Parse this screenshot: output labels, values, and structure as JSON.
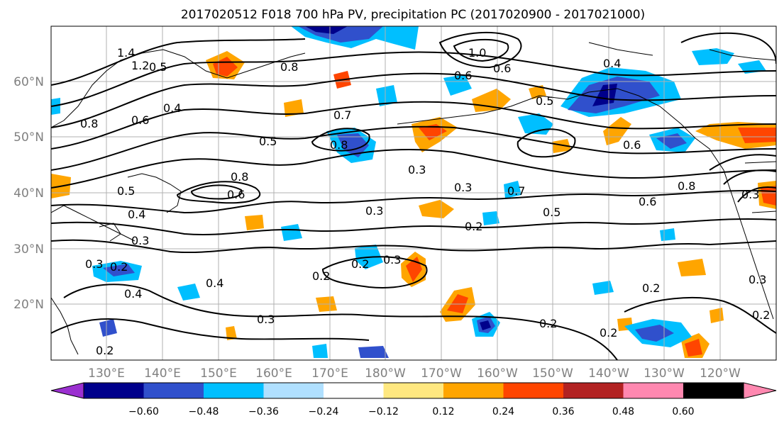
{
  "title": "2017020512 F018 700 hPa PV, precipitation PC (2017020900 - 2017021000)",
  "lat_labels": [
    "60°N",
    "50°N",
    "40°N",
    "30°N",
    "20°N"
  ],
  "lon_labels": [
    "130°E",
    "140°E",
    "150°E",
    "160°E",
    "170°E",
    "180°W",
    "170°W",
    "160°W",
    "150°W",
    "140°W",
    "130°W",
    "120°W"
  ],
  "colorbar": {
    "ticks": [
      "−0.60",
      "−0.48",
      "−0.36",
      "−0.24",
      "−0.12",
      "0.12",
      "0.24",
      "0.36",
      "0.48",
      "0.60"
    ],
    "colors": [
      "#9b30d0",
      "#00008b",
      "#3050cc",
      "#00bfff",
      "#b0e0ff",
      "#ffffff",
      "#ffe880",
      "#ffa500",
      "#ff4500",
      "#b22222",
      "#ff88b0"
    ]
  },
  "contour_labels": [
    "1.4",
    "1.2",
    "0.5",
    "0.4",
    "0.8",
    "0.6",
    "0.8",
    "0.7",
    "0.5",
    "0.3",
    "1.0",
    "0.6",
    "0.5",
    "0.4",
    "0.8",
    "0.6",
    "0.5",
    "0.4",
    "0.3",
    "0.8",
    "0.6",
    "0.3",
    "0.7",
    "0.5",
    "0.6",
    "0.2",
    "0.3",
    "0.2",
    "0.4",
    "0.3",
    "0.2",
    "0.2",
    "0.2",
    "0.4",
    "0.3",
    "0.2",
    "0.3",
    "0.2",
    "0.3",
    "0.6",
    "0.8",
    "0.2",
    "0.3",
    "0.2"
  ]
}
